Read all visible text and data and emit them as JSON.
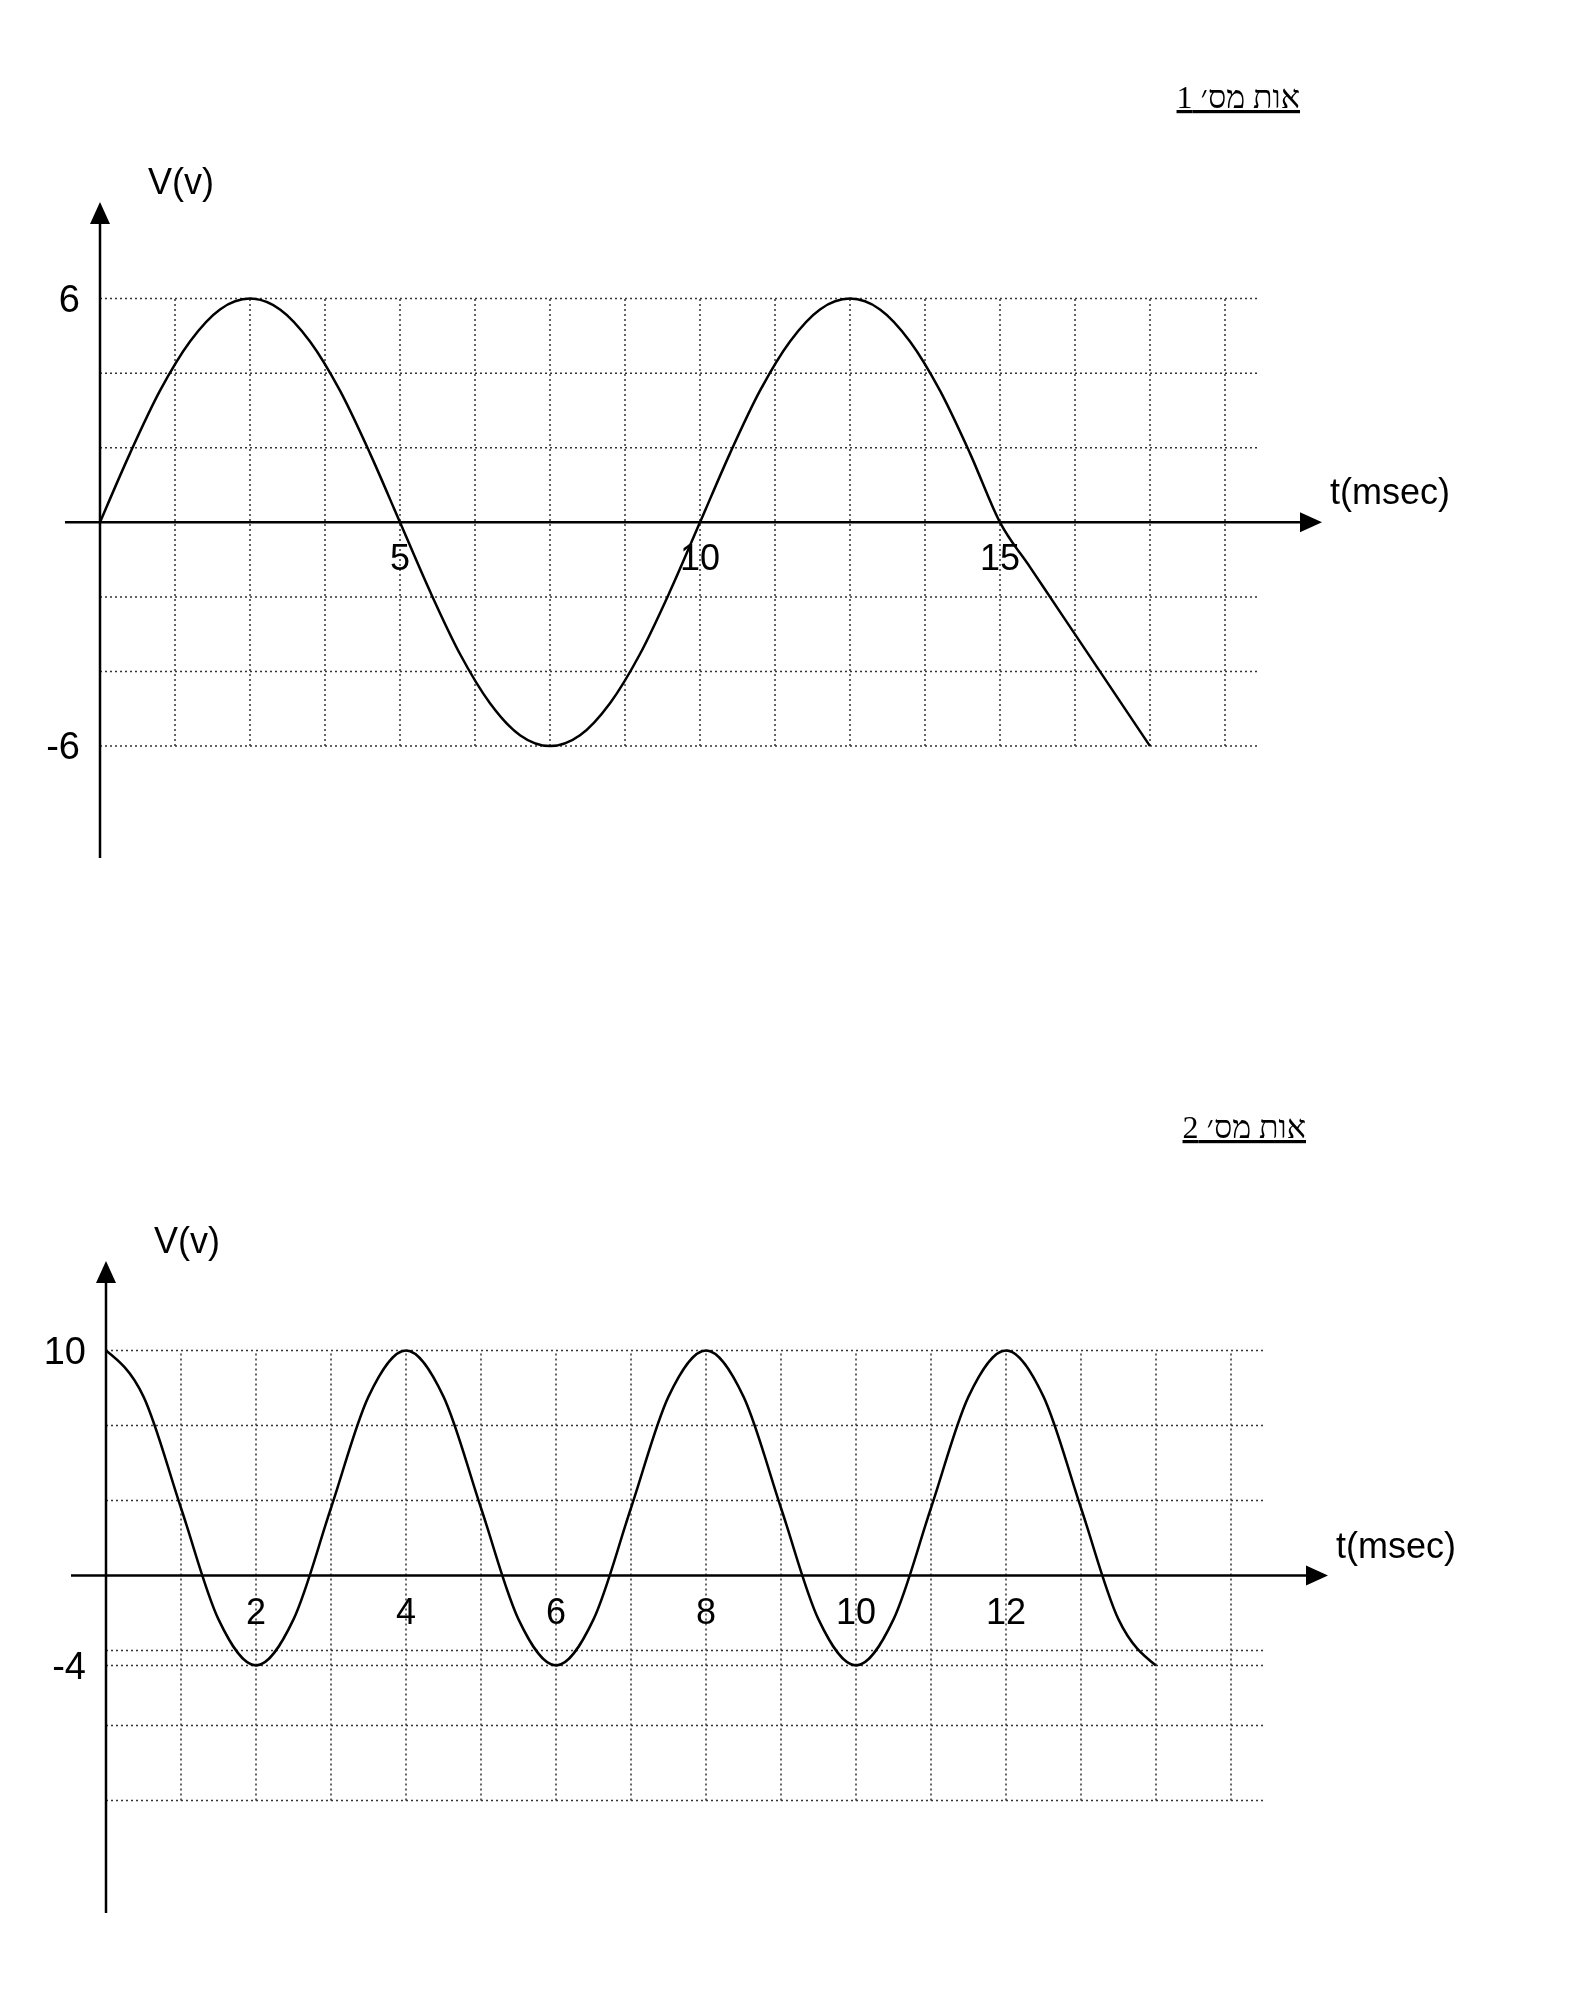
{
  "chart_data": [
    {
      "type": "line",
      "title": "אות מס׳ 1",
      "xlabel": "t(msec)",
      "ylabel": "V(v)",
      "xlim": [
        0,
        20
      ],
      "ylim": [
        -9,
        8
      ],
      "xticks": [
        {
          "value": 1.25,
          "label": null
        },
        {
          "value": 2.5,
          "label": null
        },
        {
          "value": 3.75,
          "label": null
        },
        5,
        {
          "value": 6.25,
          "label": null
        },
        {
          "value": 7.5,
          "label": null
        },
        {
          "value": 8.75,
          "label": null
        },
        10,
        {
          "value": 11.25,
          "label": null
        },
        {
          "value": 12.5,
          "label": null
        },
        {
          "value": 13.75,
          "label": null
        },
        15,
        {
          "value": 16.25,
          "label": null
        },
        {
          "value": 17.5,
          "label": null
        },
        {
          "value": 18.75,
          "label": null
        }
      ],
      "yticks": [
        -6,
        {
          "value": -4,
          "label": null
        },
        {
          "value": -2,
          "label": null
        },
        {
          "value": 2,
          "label": null
        },
        {
          "value": 4,
          "label": null
        },
        6
      ],
      "grid": true,
      "series": [
        {
          "color": "#000000",
          "x": [
            0,
            0.5,
            1,
            1.5,
            2,
            2.5,
            3,
            3.5,
            4,
            4.5,
            5,
            5.5,
            6,
            6.5,
            7,
            7.5,
            8,
            8.5,
            9,
            9.5,
            10,
            10.5,
            11,
            11.5,
            12,
            12.5,
            13,
            13.5,
            14,
            14.5,
            15,
            15.5,
            16,
            16.5,
            17,
            17.5
          ],
          "values": [
            0,
            1.85,
            3.53,
            4.85,
            5.71,
            6,
            5.71,
            4.85,
            3.53,
            1.85,
            0,
            -1.85,
            -3.53,
            -4.85,
            -5.71,
            -6,
            -5.71,
            -4.85,
            -3.53,
            -1.85,
            0,
            1.85,
            3.53,
            4.85,
            5.71,
            6,
            5.71,
            4.85,
            3.53,
            1.85,
            0,
            -1.2,
            -2.4,
            -3.6,
            -4.8,
            -6
          ]
        }
      ]
    },
    {
      "type": "line",
      "title": "אות מס׳ 2",
      "xlabel": "t(msec)",
      "ylabel": "V(v)",
      "xlim": [
        0,
        16
      ],
      "ylim": [
        -15,
        13
      ],
      "xticks": [
        {
          "value": 1,
          "label": null
        },
        2,
        {
          "value": 3,
          "label": null
        },
        4,
        {
          "value": 5,
          "label": null
        },
        6,
        {
          "value": 7,
          "label": null
        },
        8,
        {
          "value": 9,
          "label": null
        },
        10,
        {
          "value": 11,
          "label": null
        },
        12,
        {
          "value": 13,
          "label": null
        },
        {
          "value": 14,
          "label": null
        },
        {
          "value": 15,
          "label": null
        }
      ],
      "yticks": [
        {
          "value": -10,
          "label": null
        },
        {
          "value": -6.67,
          "label": null
        },
        -4,
        {
          "value": -3.33,
          "label": null
        },
        {
          "value": 3.33,
          "label": null
        },
        {
          "value": 6.67,
          "label": null
        },
        10
      ],
      "grid": true,
      "series": [
        {
          "color": "#000000",
          "x": [
            0,
            0.5,
            1,
            1.5,
            2,
            2.5,
            3,
            3.5,
            4,
            4.5,
            5,
            5.5,
            6,
            6.5,
            7,
            7.5,
            8,
            8.5,
            9,
            9.5,
            10,
            10.5,
            11,
            11.5,
            12,
            12.5,
            13,
            13.5,
            14
          ],
          "values": [
            10,
            7.95,
            3,
            -1.95,
            -4,
            -1.95,
            3,
            7.95,
            10,
            7.95,
            3,
            -1.95,
            -4,
            -1.95,
            3,
            7.95,
            10,
            7.95,
            3,
            -1.95,
            -4,
            -1.95,
            3,
            7.95,
            10,
            7.95,
            3,
            -1.95,
            -4
          ]
        }
      ]
    }
  ]
}
